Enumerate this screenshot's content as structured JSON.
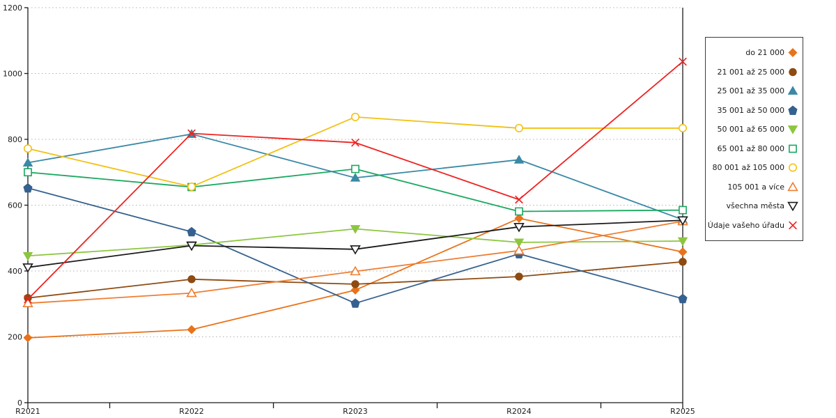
{
  "chart_data": {
    "type": "line",
    "title": "",
    "xlabel": "",
    "ylabel": "",
    "categories": [
      "R2021",
      "R2022",
      "R2023",
      "R2024",
      "R2025"
    ],
    "ylim": [
      0,
      1200
    ],
    "yticks": [
      0,
      200,
      400,
      600,
      800,
      1000,
      1200
    ],
    "grid": "horizontal dotted gridlines at every y tick",
    "legend_position": "outside-right, markers to the right of right-aligned labels",
    "axis_color": "#1a1a1a",
    "gridline_color": "#b0b0b0",
    "series": [
      {
        "name": "do 21 000",
        "color": "#E8731A",
        "marker": "diamond",
        "fill": "solid",
        "values": [
          197,
          222,
          342,
          560,
          458
        ]
      },
      {
        "name": "21 001 až 25 000",
        "color": "#8E4A10",
        "marker": "circle",
        "fill": "solid",
        "values": [
          318,
          375,
          360,
          383,
          428
        ]
      },
      {
        "name": "25 001 až 35 000",
        "color": "#3A89A5",
        "marker": "triangle-up",
        "fill": "solid",
        "values": [
          729,
          816,
          683,
          738,
          556
        ]
      },
      {
        "name": "35 001 až 50 000",
        "color": "#35618F",
        "marker": "pentagon",
        "fill": "solid",
        "values": [
          652,
          519,
          302,
          452,
          316
        ]
      },
      {
        "name": "50 001 až 65 000",
        "color": "#8CC63F",
        "marker": "triangle-down",
        "fill": "solid",
        "values": [
          446,
          479,
          528,
          487,
          491
        ]
      },
      {
        "name": "65 001 až 80 000",
        "color": "#19A85F",
        "marker": "square",
        "fill": "open",
        "values": [
          700,
          655,
          710,
          581,
          585
        ]
      },
      {
        "name": "80 001 až 105 000",
        "color": "#F2C011",
        "marker": "circle",
        "fill": "open",
        "values": [
          772,
          656,
          868,
          834,
          834
        ]
      },
      {
        "name": "105 001 a více",
        "color": "#EE7E32",
        "marker": "triangle-up",
        "fill": "open",
        "values": [
          302,
          333,
          399,
          462,
          551
        ]
      },
      {
        "name": "všechna města",
        "color": "#1A1A1A",
        "marker": "triangle-down",
        "fill": "open",
        "values": [
          411,
          477,
          466,
          534,
          554
        ]
      },
      {
        "name": "Údaje vašeho úřadu",
        "color": "#EE2222",
        "marker": "x",
        "fill": "open",
        "values": [
          314,
          818,
          790,
          617,
          1036
        ]
      }
    ]
  }
}
